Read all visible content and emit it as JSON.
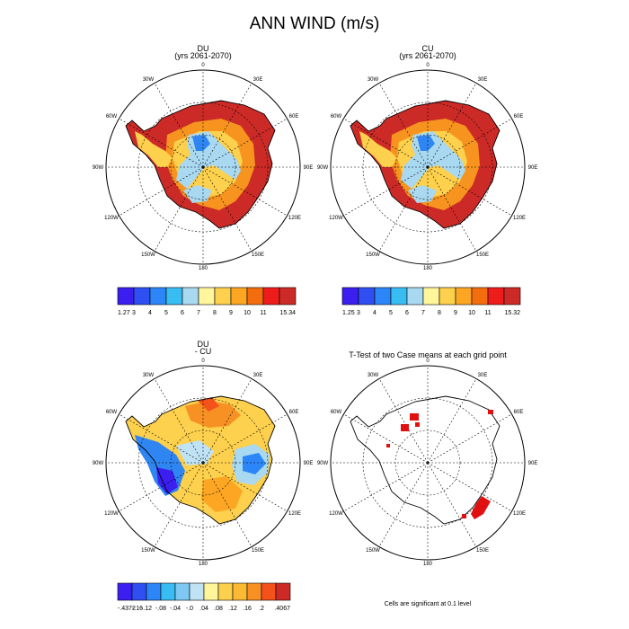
{
  "title": "ANN WIND (m/s)",
  "panels": [
    {
      "id": "du",
      "title": "DU",
      "subtitle": "(yrs 2061-2070)",
      "lon_labels": [
        "0",
        "30E",
        "60E",
        "90E",
        "120E",
        "150E",
        "180",
        "150W",
        "120W",
        "90W",
        "60W",
        "30W"
      ],
      "colorbar": {
        "labels": [
          "1.27",
          "3",
          "4",
          "5",
          "6",
          "7",
          "8",
          "9",
          "10",
          "11",
          "15.34"
        ],
        "colors": [
          "#3b1ef0",
          "#2f4ff2",
          "#2c86f7",
          "#38bdf3",
          "#a9d8f1",
          "#fff59a",
          "#fdd04d",
          "#fca623",
          "#f36d0c",
          "#ee1c1a",
          "#cc2a26"
        ]
      }
    },
    {
      "id": "cu",
      "title": "CU",
      "subtitle": "(yrs 2061-2070)",
      "lon_labels": [
        "0",
        "30E",
        "60E",
        "90E",
        "120E",
        "150E",
        "180",
        "150W",
        "120W",
        "90W",
        "60W",
        "30W"
      ],
      "colorbar": {
        "labels": [
          "1.25",
          "3",
          "4",
          "5",
          "6",
          "7",
          "8",
          "9",
          "10",
          "11",
          "15.32"
        ],
        "colors": [
          "#3b1ef0",
          "#2f4ff2",
          "#2c86f7",
          "#38bdf3",
          "#a9d8f1",
          "#fff59a",
          "#fdd04d",
          "#fca623",
          "#f36d0c",
          "#ee1c1a",
          "#cc2a26"
        ]
      }
    },
    {
      "id": "diff",
      "title": "DU",
      "subtitle": "- CU",
      "lon_labels": [
        "0",
        "30E",
        "60E",
        "90E",
        "120E",
        "150E",
        "180",
        "150W",
        "120W",
        "90W",
        "60W",
        "30W"
      ],
      "colorbar": {
        "labels": [
          "-.4372",
          "-.16",
          "-.12",
          "-.08",
          "-.04",
          "-.0",
          ".04",
          ".08",
          ".12",
          ".16",
          ".2",
          ".4067"
        ],
        "colors": [
          "#3b1ef0",
          "#2f4ff2",
          "#2c86f7",
          "#38bdf3",
          "#7ec8f3",
          "#bfe3f4",
          "#fff59a",
          "#fdd04d",
          "#fcb934",
          "#f89123",
          "#f3521a",
          "#cc2a26"
        ]
      }
    },
    {
      "id": "ttest",
      "title": "T-Test of two Case means at each grid point",
      "lon_labels": [
        "0",
        "30E",
        "60E",
        "90E",
        "120E",
        "150E",
        "180",
        "150W",
        "120W",
        "90W",
        "60W",
        "30W"
      ],
      "footnote": "Cells are significant at 0.1 level"
    }
  ],
  "colors": {
    "significant": "#e01010",
    "coast": "#000000",
    "grid": "#000000"
  }
}
